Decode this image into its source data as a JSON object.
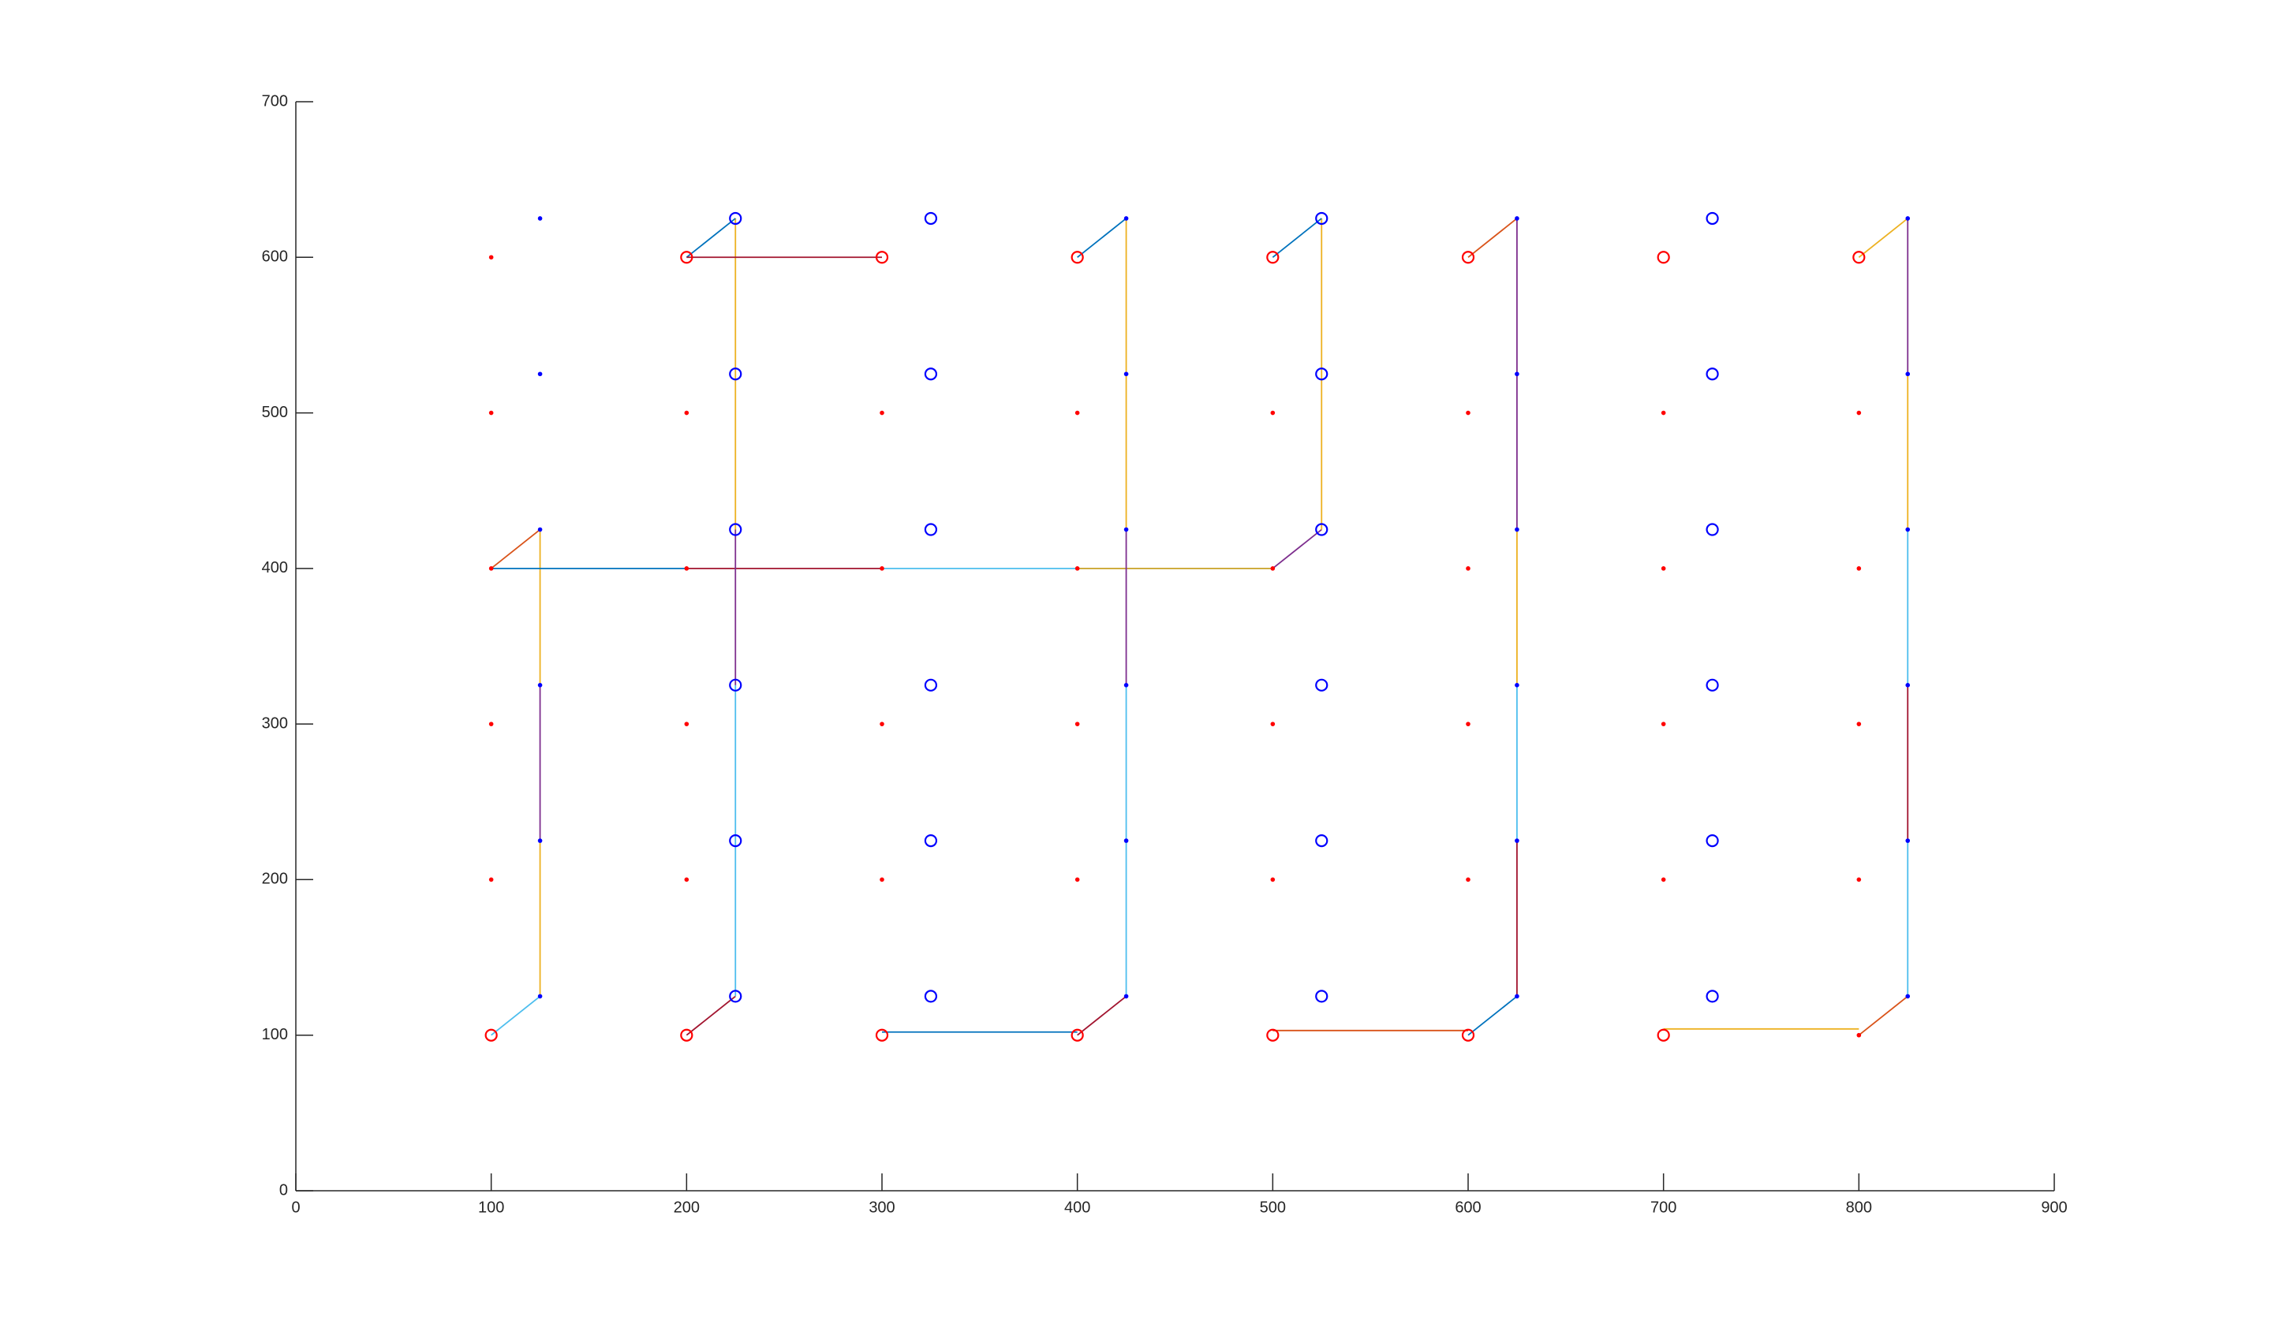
{
  "chart_data": {
    "type": "scatter",
    "xlim": [
      0,
      900
    ],
    "ylim": [
      0,
      700
    ],
    "xticks": [
      0,
      100,
      200,
      300,
      400,
      500,
      600,
      700,
      800,
      900
    ],
    "yticks": [
      0,
      100,
      200,
      300,
      400,
      500,
      600,
      700
    ],
    "series": [
      {
        "color": "#ff0000",
        "marker": "dot",
        "x": [
          800,
          100,
          200,
          300,
          400,
          500,
          600,
          700,
          800,
          100,
          200,
          300,
          400,
          500,
          600,
          700,
          800,
          100,
          200,
          300,
          400,
          500,
          600,
          700,
          800,
          100,
          200,
          300,
          400,
          500,
          600,
          700,
          800,
          100
        ],
        "y": [
          100,
          200,
          200,
          200,
          200,
          200,
          200,
          200,
          200,
          300,
          300,
          300,
          300,
          300,
          300,
          300,
          300,
          400,
          400,
          400,
          400,
          400,
          400,
          400,
          400,
          500,
          500,
          500,
          500,
          500,
          500,
          500,
          500,
          600
        ]
      },
      {
        "color": "#ff0000",
        "marker": "circle",
        "x": [
          100,
          200,
          300,
          400,
          500,
          600,
          700,
          200,
          300,
          400,
          500,
          600,
          700,
          800
        ],
        "y": [
          100,
          100,
          100,
          100,
          100,
          100,
          100,
          600,
          600,
          600,
          600,
          600,
          600,
          600
        ]
      },
      {
        "color": "#0000ff",
        "marker": "dot",
        "x": [
          125,
          125,
          125,
          125,
          125,
          125,
          425,
          425,
          425,
          425,
          425,
          425,
          625,
          625,
          625,
          625,
          625,
          625,
          825,
          825,
          825,
          825,
          825,
          825
        ],
        "y": [
          125,
          225,
          325,
          425,
          525,
          625,
          125,
          225,
          325,
          425,
          525,
          625,
          125,
          225,
          325,
          425,
          525,
          625,
          125,
          225,
          325,
          425,
          525,
          625
        ]
      },
      {
        "color": "#0000ff",
        "marker": "circle",
        "x": [
          225,
          225,
          225,
          225,
          225,
          225,
          325,
          325,
          325,
          325,
          325,
          325,
          525,
          525,
          525,
          525,
          525,
          525,
          725,
          725,
          725,
          725,
          725,
          725
        ],
        "y": [
          125,
          225,
          325,
          425,
          525,
          625,
          125,
          225,
          325,
          425,
          525,
          625,
          125,
          225,
          325,
          425,
          525,
          625,
          125,
          225,
          325,
          425,
          525,
          625
        ]
      }
    ],
    "lines": [
      {
        "color": "#4DBEEE",
        "x": [
          100,
          125
        ],
        "y": [
          100,
          125
        ]
      },
      {
        "color": "#EDB120",
        "x": [
          125,
          125
        ],
        "y": [
          125,
          225
        ]
      },
      {
        "color": "#7E2F8E",
        "x": [
          125,
          125
        ],
        "y": [
          225,
          325
        ]
      },
      {
        "color": "#EDB120",
        "x": [
          125,
          125
        ],
        "y": [
          325,
          425
        ]
      },
      {
        "color": "#D95319",
        "x": [
          125,
          100
        ],
        "y": [
          425,
          400
        ]
      },
      {
        "color": "#0072BD",
        "x": [
          100,
          200
        ],
        "y": [
          400,
          400
        ]
      },
      {
        "color": "#A2142F",
        "x": [
          200,
          300
        ],
        "y": [
          400,
          400
        ]
      },
      {
        "color": "#4DBEEE",
        "x": [
          300,
          400
        ],
        "y": [
          400,
          400
        ]
      },
      {
        "color": "#C9A227",
        "x": [
          400,
          500
        ],
        "y": [
          400,
          400
        ]
      },
      {
        "color": "#7E2F8E",
        "x": [
          500,
          525
        ],
        "y": [
          400,
          425
        ]
      },
      {
        "color": "#EDB120",
        "x": [
          525,
          525
        ],
        "y": [
          425,
          625
        ]
      },
      {
        "color": "#0072BD",
        "x": [
          525,
          500
        ],
        "y": [
          625,
          600
        ]
      },
      {
        "color": "#A2142F",
        "x": [
          200,
          225
        ],
        "y": [
          100,
          125
        ]
      },
      {
        "color": "#4DBEEE",
        "x": [
          225,
          225
        ],
        "y": [
          125,
          325
        ]
      },
      {
        "color": "#7E2F8E",
        "x": [
          225,
          225
        ],
        "y": [
          325,
          425
        ]
      },
      {
        "color": "#EDB120",
        "x": [
          225,
          225
        ],
        "y": [
          425,
          625
        ]
      },
      {
        "color": "#0072BD",
        "x": [
          225,
          200
        ],
        "y": [
          625,
          600
        ]
      },
      {
        "color": "#A2142F",
        "x": [
          200,
          300
        ],
        "y": [
          600,
          600
        ]
      },
      {
        "color": "#0072BD",
        "x": [
          300,
          400
        ],
        "y": [
          102,
          102
        ]
      },
      {
        "color": "#A2142F",
        "x": [
          400,
          425
        ],
        "y": [
          100,
          125
        ]
      },
      {
        "color": "#4DBEEE",
        "x": [
          425,
          425
        ],
        "y": [
          125,
          325
        ]
      },
      {
        "color": "#7E2F8E",
        "x": [
          425,
          425
        ],
        "y": [
          325,
          425
        ]
      },
      {
        "color": "#EDB120",
        "x": [
          425,
          425
        ],
        "y": [
          425,
          625
        ]
      },
      {
        "color": "#0072BD",
        "x": [
          425,
          400
        ],
        "y": [
          625,
          600
        ]
      },
      {
        "color": "#D95319",
        "x": [
          500,
          600
        ],
        "y": [
          103,
          103
        ]
      },
      {
        "color": "#0072BD",
        "x": [
          600,
          625
        ],
        "y": [
          100,
          125
        ]
      },
      {
        "color": "#A2142F",
        "x": [
          625,
          625
        ],
        "y": [
          125,
          225
        ]
      },
      {
        "color": "#4DBEEE",
        "x": [
          625,
          625
        ],
        "y": [
          225,
          325
        ]
      },
      {
        "color": "#EDB120",
        "x": [
          625,
          625
        ],
        "y": [
          325,
          425
        ]
      },
      {
        "color": "#7E2F8E",
        "x": [
          625,
          625
        ],
        "y": [
          425,
          625
        ]
      },
      {
        "color": "#D95319",
        "x": [
          625,
          600
        ],
        "y": [
          625,
          600
        ]
      },
      {
        "color": "#EDB120",
        "x": [
          700,
          800
        ],
        "y": [
          104,
          104
        ]
      },
      {
        "color": "#D95319",
        "x": [
          800,
          825
        ],
        "y": [
          100,
          125
        ]
      },
      {
        "color": "#4DBEEE",
        "x": [
          825,
          825
        ],
        "y": [
          125,
          225
        ]
      },
      {
        "color": "#A2142F",
        "x": [
          825,
          825
        ],
        "y": [
          225,
          325
        ]
      },
      {
        "color": "#4DBEEE",
        "x": [
          825,
          825
        ],
        "y": [
          325,
          425
        ]
      },
      {
        "color": "#EDB120",
        "x": [
          825,
          825
        ],
        "y": [
          425,
          525
        ]
      },
      {
        "color": "#7E2F8E",
        "x": [
          825,
          825
        ],
        "y": [
          525,
          625
        ]
      },
      {
        "color": "#EDB120",
        "x": [
          825,
          800
        ],
        "y": [
          625,
          600
        ]
      }
    ]
  }
}
